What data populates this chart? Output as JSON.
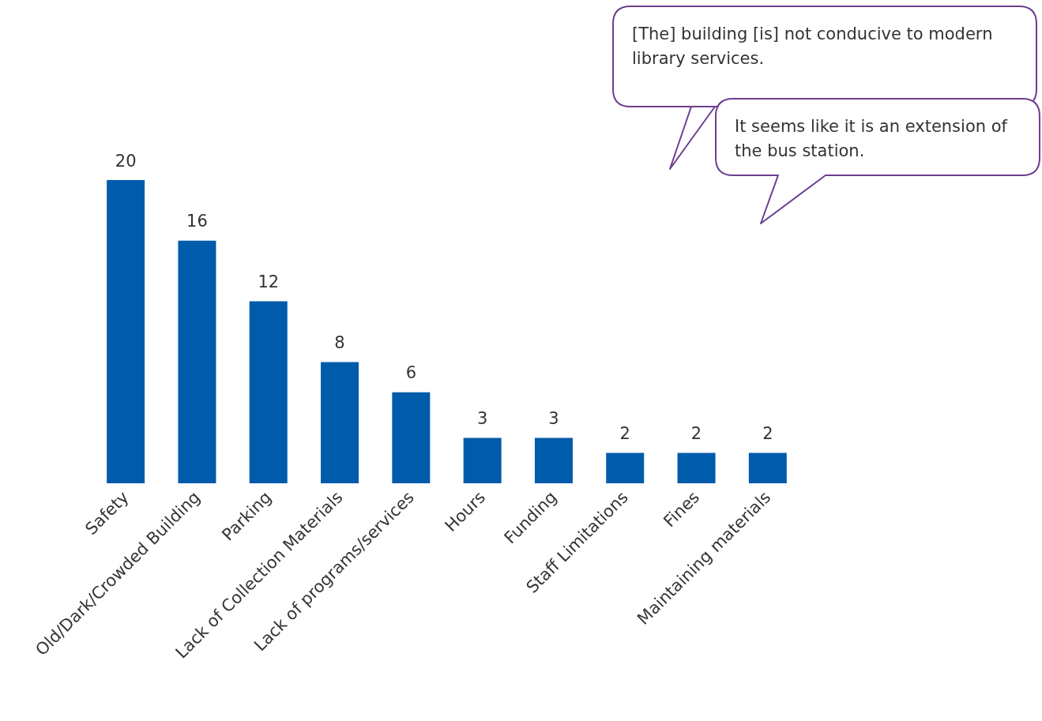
{
  "chart_data": {
    "type": "bar",
    "categories": [
      "Safety",
      "Old/Dark/Crowded Building",
      "Parking",
      "Lack of Collection Materials",
      "Lack of programs/services",
      "Hours",
      "Funding",
      "Staff Limitations",
      "Fines",
      "Maintaining materials"
    ],
    "values": [
      20,
      16,
      12,
      8,
      6,
      3,
      3,
      2,
      2,
      2
    ],
    "color": "#005baa",
    "data_labels": true,
    "annotations": [
      "[The] building [is] not conducive to modern library services.",
      "It seems like it is an extension of the bus station."
    ]
  }
}
